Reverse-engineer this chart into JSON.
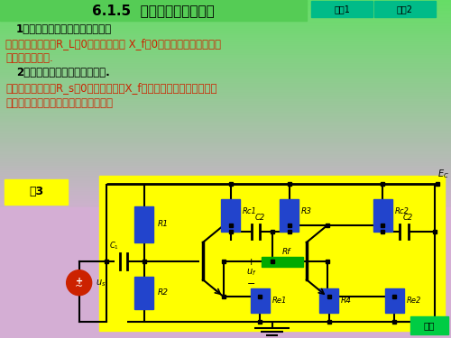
{
  "title": "6.1.5  判别反馈类型的方法",
  "box1_label": "休息1",
  "box2_label": "休息2",
  "return_label": "返回",
  "example_label": "例3",
  "line1": "1．判断电压反馈还是电流反馈：",
  "line2a": "如果输出端短路（R_L＝0），反馈信号 X_f＝0，则判断为电压反馈，",
  "line2b": "否则为电流反馈.",
  "line3": "2．判断并联反馈还是串联反馈.",
  "line4a": "如果输入端短路（R_s＝0），反馈信号X_f加不到基本放大器输入端，",
  "line4b": "则判断为并联反馈。否则为串联反馈。",
  "bg_purple": "#d4aed4",
  "bg_green_top": "#66dd66",
  "title_bar_color": "#55cc55",
  "button_color": "#00bb88",
  "return_color": "#00cc44",
  "yellow": "#ffff00",
  "blue_resistor": "#2244cc",
  "green_resistor": "#00aa00",
  "red_source": "#cc2200",
  "wire_color": "#000000",
  "text_red": "#cc2200",
  "text_black": "#000000"
}
